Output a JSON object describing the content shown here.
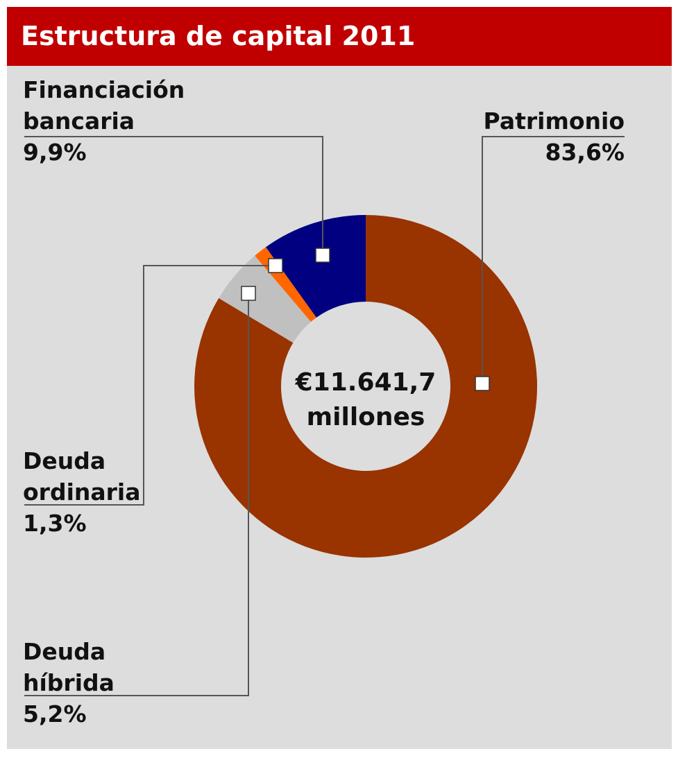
{
  "chart_data": {
    "type": "donut",
    "title": "Estructura de capital 2011",
    "center_label": "€11.641,7 millones",
    "categories": [
      "Patrimonio",
      "Deuda híbrida",
      "Deuda ordinaria",
      "Financiación bancaria"
    ],
    "values": [
      83.6,
      5.2,
      1.3,
      9.9
    ],
    "value_labels": [
      "83,6%",
      "5,2%",
      "1,3%",
      "9,9%"
    ],
    "colors": [
      "#993300",
      "#c0c0c0",
      "#ff6600",
      "#000080"
    ]
  }
}
